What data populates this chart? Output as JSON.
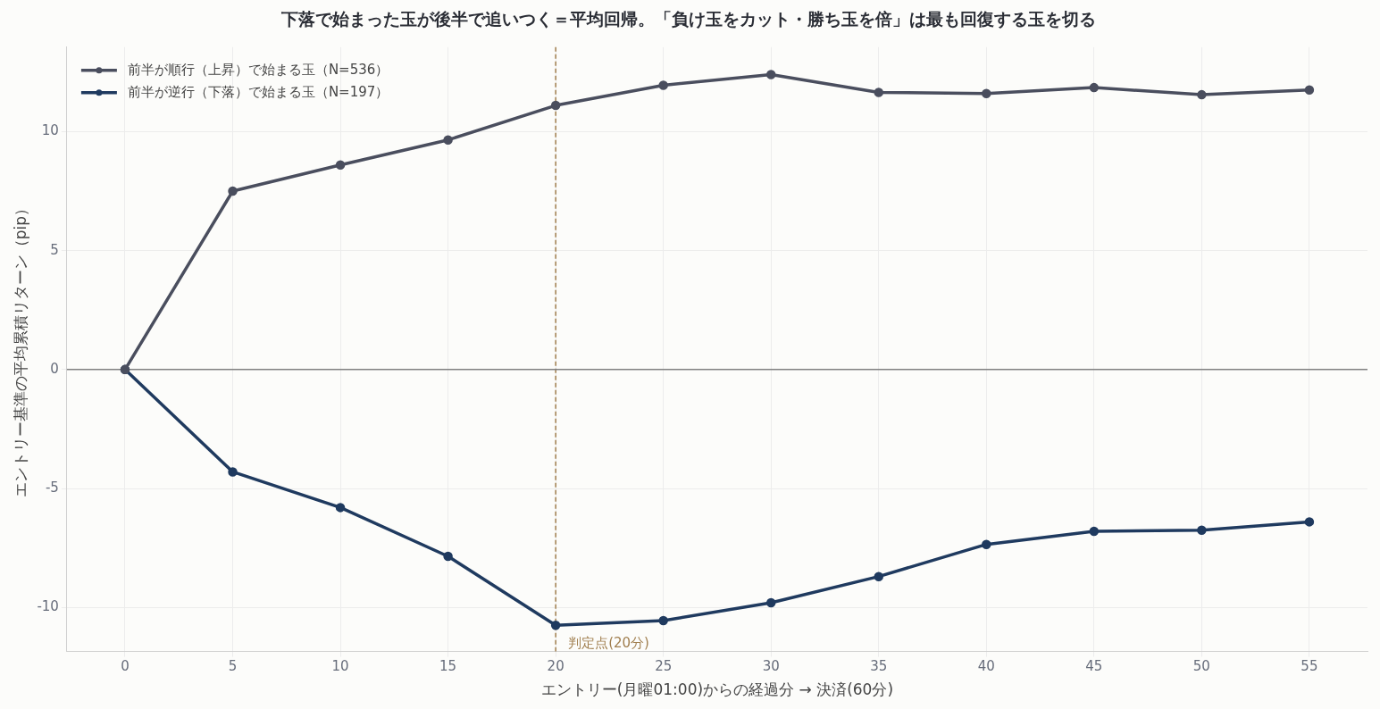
{
  "chart_data": {
    "type": "line",
    "title": "下落で始まった玉が後半で追いつく＝平均回帰。「負け玉をカット・勝ち玉を倍」は最も回復する玉を切る",
    "xlabel": "エントリー(月曜01:00)からの経過分 → 決済(60分)",
    "ylabel": "エントリー基準の平均累積リターン（pip）",
    "x": [
      0,
      5,
      10,
      15,
      20,
      25,
      30,
      35,
      40,
      45,
      50,
      55
    ],
    "series": [
      {
        "name": "前半が順行（上昇）で始まる玉（N=536）",
        "color": "#4a4e5e",
        "values": [
          0,
          7.5,
          8.6,
          9.65,
          11.1,
          11.95,
          12.4,
          11.65,
          11.6,
          11.85,
          11.55,
          11.75
        ]
      },
      {
        "name": "前半が逆行（下落）で始まる玉（N=197）",
        "color": "#1f3a5f",
        "values": [
          0,
          -4.3,
          -5.8,
          -7.85,
          -10.75,
          -10.55,
          -9.8,
          -8.7,
          -7.35,
          -6.8,
          -6.75,
          -6.4
        ]
      }
    ],
    "xlim": [
      -2.7,
      57.7
    ],
    "xticks": [
      0,
      5,
      10,
      15,
      20,
      25,
      30,
      35,
      40,
      45,
      50,
      55
    ],
    "ylim": [
      -11.85,
      13.55
    ],
    "yticks": [
      -10,
      -5,
      0,
      5,
      10
    ],
    "ref_lines": [
      {
        "axis": "x",
        "value": 20,
        "label": "判定点(20分)",
        "color": "#a07e4e",
        "line_style": "dashed"
      },
      {
        "axis": "y",
        "value": 0,
        "color": "#808080",
        "line_style": "solid"
      }
    ],
    "grid": true,
    "legend": "top left",
    "marker": "circle",
    "line_style": "solid"
  }
}
